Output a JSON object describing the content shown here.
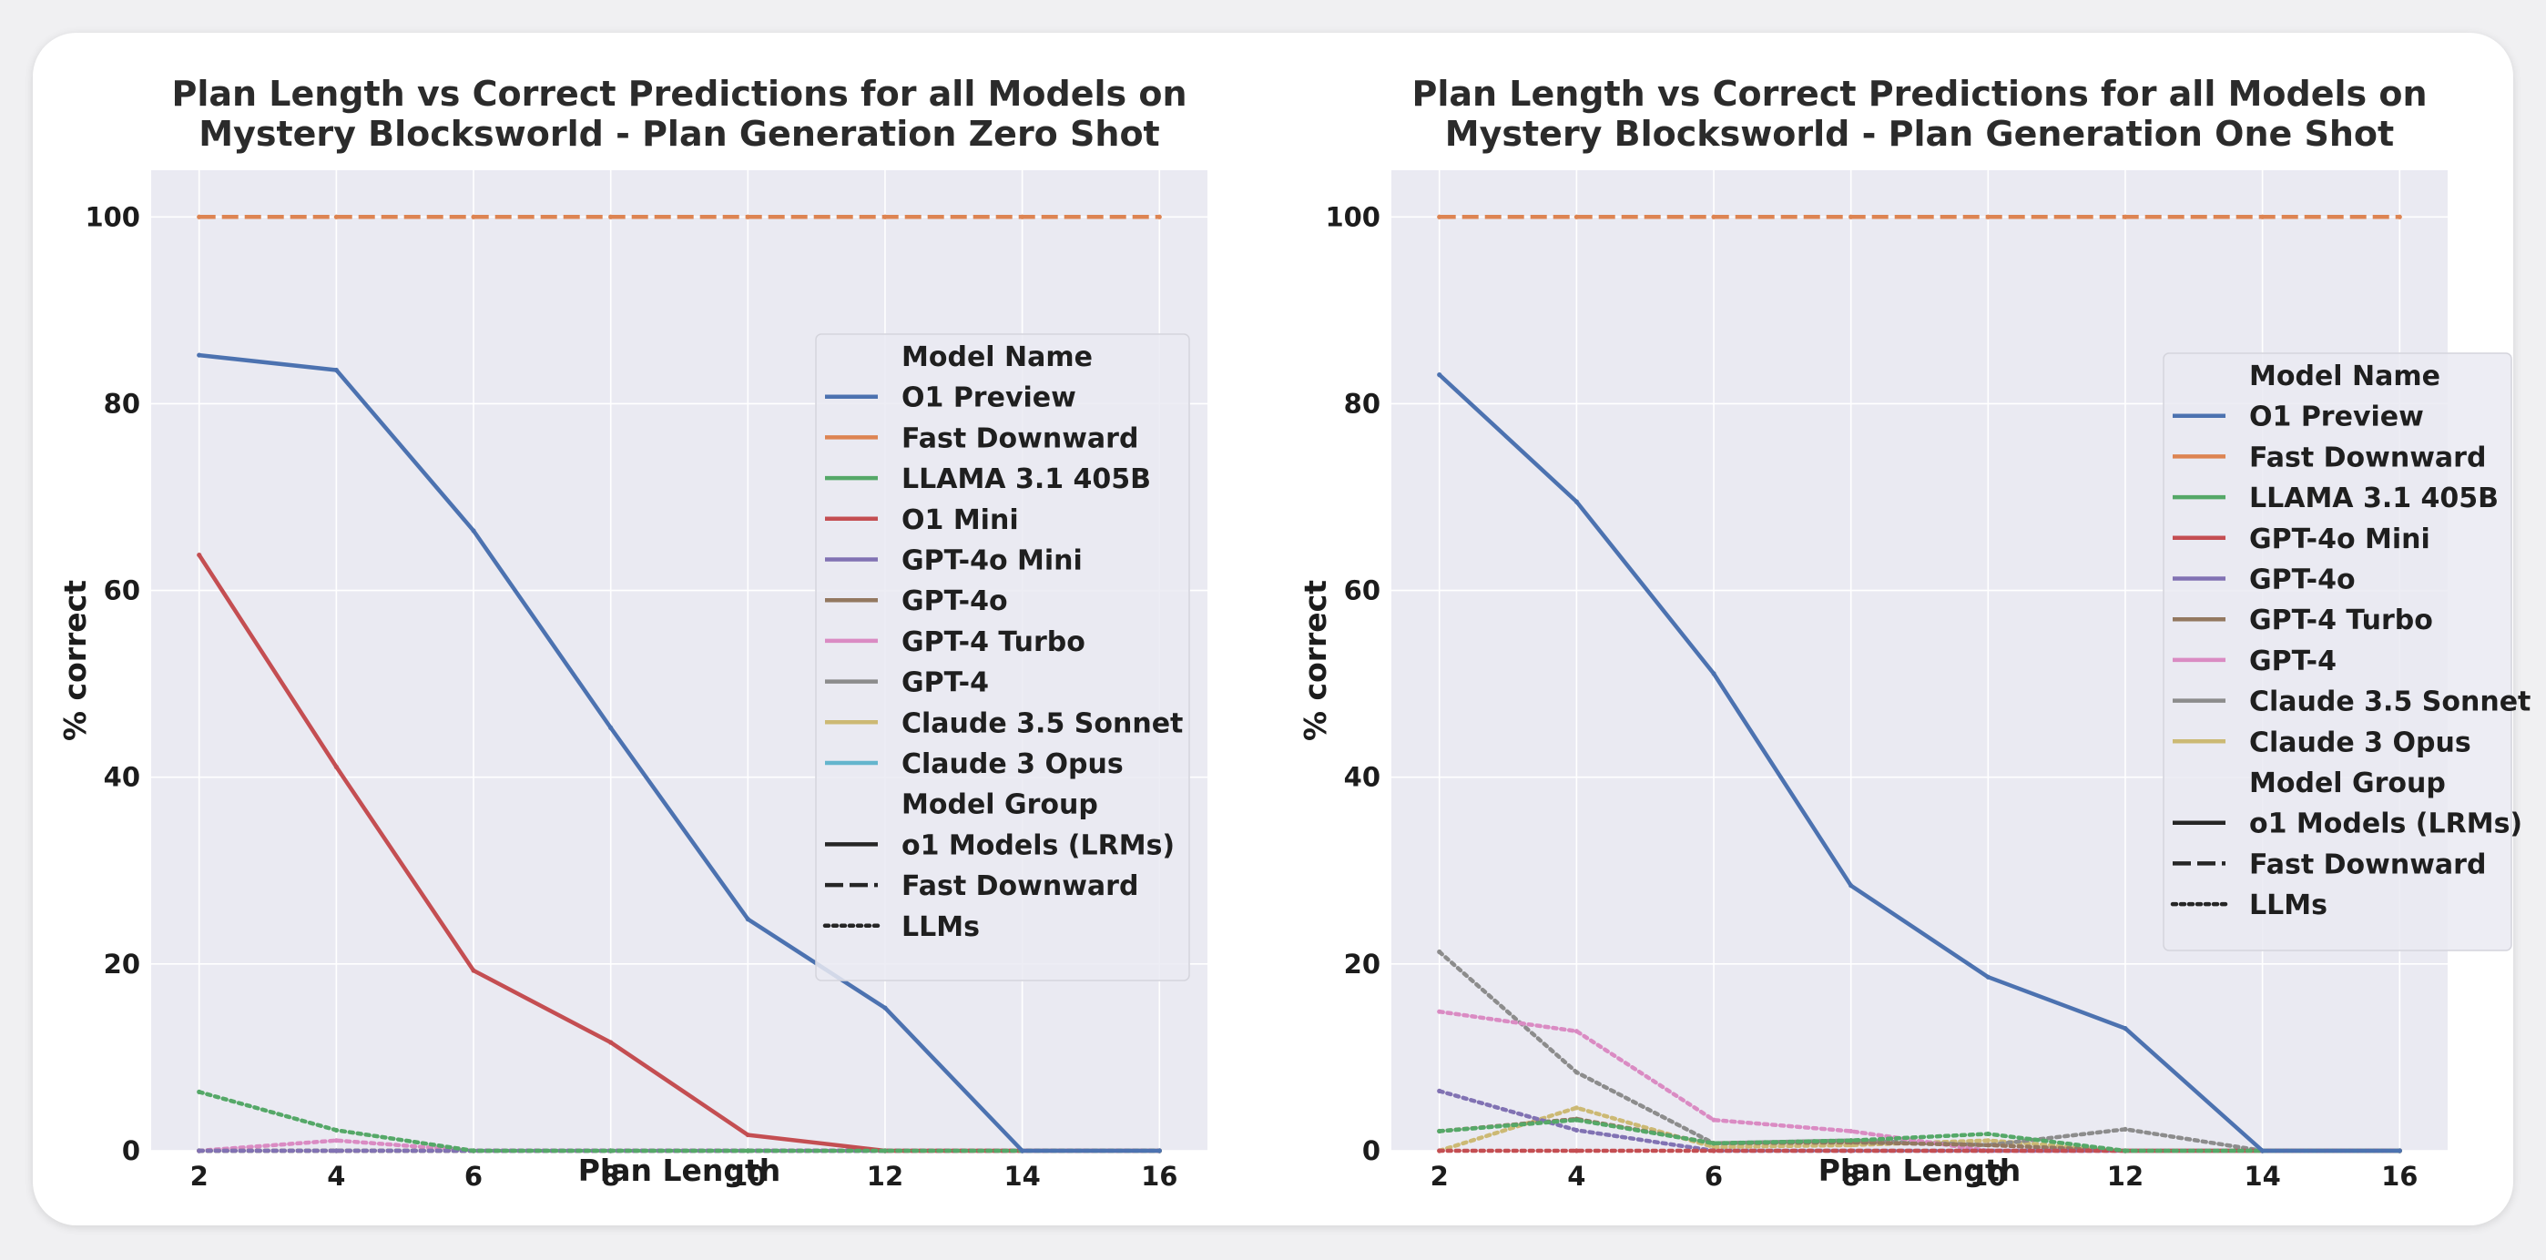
{
  "chart_data": [
    {
      "type": "line",
      "title": "Plan Length vs Correct Predictions for all Models on\nMystery Blocksworld - Plan Generation Zero Shot",
      "xlabel": "Plan Length",
      "ylabel": "% correct",
      "x": [
        2,
        4,
        6,
        8,
        10,
        12,
        14,
        16
      ],
      "xlim": [
        1.3,
        16.7
      ],
      "ylim": [
        0,
        105
      ],
      "xticks": [
        2,
        4,
        6,
        8,
        10,
        12,
        14,
        16
      ],
      "yticks": [
        0,
        20,
        40,
        60,
        80,
        100
      ],
      "grid": true,
      "legend": {
        "placement": "center-right",
        "name_title": "Model Name",
        "group_title": "Model Group",
        "groups": [
          {
            "label": "o1 Models (LRMs)",
            "style": "solid"
          },
          {
            "label": "Fast Downward",
            "style": "dashed"
          },
          {
            "label": "LLMs",
            "style": "dotted"
          }
        ]
      },
      "series": [
        {
          "name": "O1 Preview",
          "color": "#4c72b0",
          "style": "solid",
          "values": [
            85.2,
            83.6,
            66.4,
            45.3,
            24.8,
            15.3,
            0,
            0
          ]
        },
        {
          "name": "Fast Downward",
          "color": "#dd8452",
          "style": "dashed",
          "values": [
            100,
            100,
            100,
            100,
            100,
            100,
            100,
            100
          ]
        },
        {
          "name": "LLAMA 3.1 405B",
          "color": "#55a868",
          "style": "dotted",
          "values": [
            6.3,
            2.2,
            0,
            0,
            0,
            0,
            0,
            0
          ]
        },
        {
          "name": "O1 Mini",
          "color": "#c44e52",
          "style": "solid",
          "values": [
            63.8,
            41.1,
            19.3,
            11.6,
            1.7,
            0,
            0,
            0
          ]
        },
        {
          "name": "GPT-4o Mini",
          "color": "#8172b3",
          "style": "dotted",
          "values": [
            0,
            0,
            0,
            0,
            0,
            0,
            0,
            0
          ]
        },
        {
          "name": "GPT-4o",
          "color": "#937860",
          "style": "dotted",
          "values": [
            0,
            0,
            0,
            0,
            0,
            0,
            0,
            0
          ]
        },
        {
          "name": "GPT-4 Turbo",
          "color": "#da8bc3",
          "style": "dotted",
          "values": [
            0,
            1.1,
            0,
            0,
            0,
            0,
            0,
            0
          ]
        },
        {
          "name": "GPT-4",
          "color": "#8c8c8c",
          "style": "dotted",
          "values": [
            0,
            0,
            0,
            0,
            0,
            0,
            0,
            0
          ]
        },
        {
          "name": "Claude 3.5 Sonnet",
          "color": "#ccb974",
          "style": "dotted",
          "values": [
            0,
            0,
            0,
            0,
            0,
            0,
            0,
            0
          ]
        },
        {
          "name": "Claude 3 Opus",
          "color": "#64b5cd",
          "style": "dotted",
          "values": [
            0,
            0,
            0,
            0,
            0,
            0,
            0,
            0
          ]
        }
      ]
    },
    {
      "type": "line",
      "title": "Plan Length vs Correct Predictions for all Models on\nMystery Blocksworld - Plan Generation One Shot",
      "xlabel": "Plan Length",
      "ylabel": "% correct",
      "x": [
        2,
        4,
        6,
        8,
        10,
        12,
        14,
        16
      ],
      "xlim": [
        1.3,
        16.7
      ],
      "ylim": [
        0,
        105
      ],
      "xticks": [
        2,
        4,
        6,
        8,
        10,
        12,
        14,
        16
      ],
      "yticks": [
        0,
        20,
        40,
        60,
        80,
        100
      ],
      "grid": true,
      "legend": {
        "placement": "center-right",
        "name_title": "Model Name",
        "group_title": "Model Group",
        "groups": [
          {
            "label": "o1 Models (LRMs)",
            "style": "solid"
          },
          {
            "label": "Fast Downward",
            "style": "dashed"
          },
          {
            "label": "LLMs",
            "style": "dotted"
          }
        ]
      },
      "series": [
        {
          "name": "O1 Preview",
          "color": "#4c72b0",
          "style": "solid",
          "values": [
            83.1,
            69.5,
            51.1,
            28.4,
            18.6,
            13.1,
            0,
            0
          ]
        },
        {
          "name": "Fast Downward",
          "color": "#dd8452",
          "style": "dashed",
          "values": [
            100,
            100,
            100,
            100,
            100,
            100,
            100,
            100
          ]
        },
        {
          "name": "LLAMA 3.1 405B",
          "color": "#55a868",
          "style": "dotted",
          "values": [
            2.1,
            3.3,
            0.8,
            1.1,
            1.8,
            0,
            0,
            0
          ]
        },
        {
          "name": "GPT-4o Mini",
          "color": "#c44e52",
          "style": "dotted",
          "values": [
            0,
            0,
            0,
            0,
            0,
            0,
            0,
            0
          ]
        },
        {
          "name": "GPT-4o",
          "color": "#8172b3",
          "style": "dotted",
          "values": [
            6.4,
            2.2,
            0,
            0,
            0,
            0,
            0,
            0
          ]
        },
        {
          "name": "GPT-4 Turbo",
          "color": "#937860",
          "style": "dotted",
          "values": [
            2.1,
            3.4,
            0.8,
            0.9,
            0.6,
            0,
            0,
            0
          ]
        },
        {
          "name": "GPT-4",
          "color": "#da8bc3",
          "style": "dotted",
          "values": [
            14.9,
            12.8,
            3.3,
            2.1,
            0,
            0,
            0,
            0
          ]
        },
        {
          "name": "Claude 3.5 Sonnet",
          "color": "#8c8c8c",
          "style": "dotted",
          "values": [
            21.3,
            8.4,
            0.8,
            1.1,
            0.6,
            2.3,
            0,
            0
          ]
        },
        {
          "name": "Claude 3 Opus",
          "color": "#ccb974",
          "style": "dotted",
          "values": [
            0,
            4.6,
            0.4,
            0.6,
            1.1,
            0,
            0,
            0
          ]
        }
      ]
    }
  ]
}
